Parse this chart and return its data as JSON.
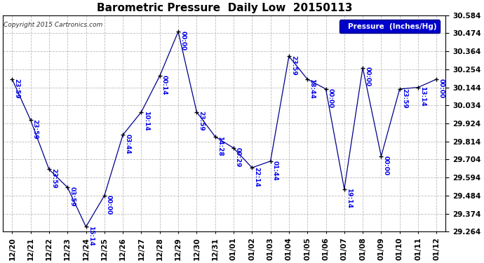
{
  "title": "Barometric Pressure  Daily Low  20150113",
  "ylabel": "Pressure  (Inches/Hg)",
  "copyright": "Copyright 2015 Cartronics.com",
  "background_color": "#ffffff",
  "plot_bg_color": "#ffffff",
  "line_color": "#00008b",
  "marker_color": "#000000",
  "text_color": "#0000ee",
  "legend_bg": "#0000cc",
  "legend_text_color": "#ffffff",
  "x_labels": [
    "12/20",
    "12/21",
    "12/22",
    "12/23",
    "12/24",
    "12/25",
    "12/26",
    "12/27",
    "12/28",
    "12/29",
    "12/30",
    "12/31",
    "01/01",
    "01/02",
    "01/03",
    "01/04",
    "01/05",
    "01/06",
    "01/07",
    "01/08",
    "01/09",
    "01/10",
    "01/11",
    "01/12"
  ],
  "y_values": [
    30.194,
    29.944,
    29.644,
    29.534,
    29.294,
    29.484,
    29.854,
    29.994,
    30.214,
    30.484,
    29.994,
    29.844,
    29.774,
    29.654,
    29.694,
    30.334,
    30.194,
    30.134,
    29.524,
    30.264,
    29.724,
    30.134,
    30.144,
    30.194
  ],
  "point_labels": [
    "23:59",
    "23:59",
    "23:59",
    "03:59",
    "15:14",
    "00:00",
    "03:44",
    "10:14",
    "00:14",
    "00:00",
    "23:59",
    "14:28",
    "00:29",
    "22:14",
    "01:44",
    "23:59",
    "18:44",
    "00:00",
    "19:14",
    "00:00",
    "00:00",
    "23:59",
    "13:14",
    "00:00"
  ],
  "ylim": [
    29.264,
    30.584
  ],
  "yticks": [
    29.264,
    29.374,
    29.484,
    29.594,
    29.704,
    29.814,
    29.924,
    30.034,
    30.144,
    30.254,
    30.364,
    30.474,
    30.584
  ],
  "grid_color": "#bbbbbb",
  "title_fontsize": 11,
  "tick_fontsize": 7.5,
  "label_fontsize": 6.5
}
